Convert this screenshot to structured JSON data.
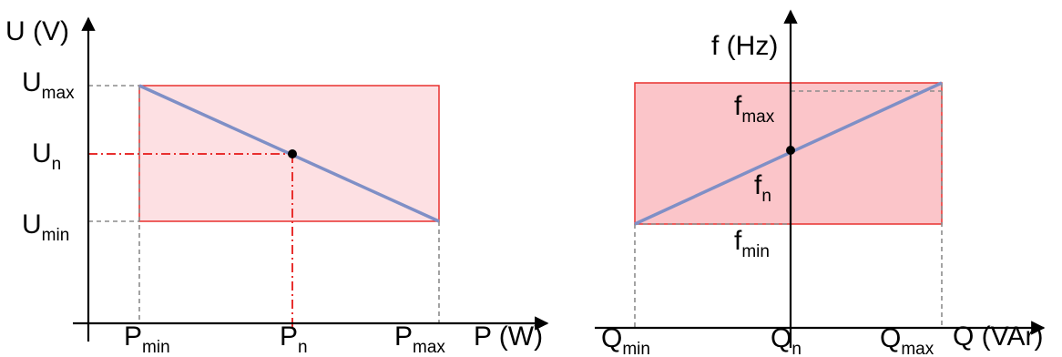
{
  "colors": {
    "rect_fill_left": "#fde0e3",
    "rect_fill_right": "#fbc5c9",
    "rect_stroke": "#e8302f",
    "droop_line": "#7f8fc6",
    "guide_grey": "#8c8c8c",
    "guide_red": "#e8302f",
    "axis": "#000000",
    "point": "#000000"
  },
  "left_diagram": {
    "y_axis_label": "U (V)",
    "x_axis_label": "P (W)",
    "labels": {
      "u_max": {
        "main": "U",
        "sub": "max"
      },
      "u_n": {
        "main": "U",
        "sub": "n"
      },
      "u_min": {
        "main": "U",
        "sub": "min"
      },
      "p_min": {
        "main": "P",
        "sub": "min"
      },
      "p_n": {
        "main": "P",
        "sub": "n"
      },
      "p_max": {
        "main": "P",
        "sub": "max"
      }
    }
  },
  "right_diagram": {
    "y_axis_label": "f (Hz)",
    "x_axis_label": "Q (VAr)",
    "labels": {
      "f_max": {
        "main": "f",
        "sub": "max"
      },
      "f_n": {
        "main": "f",
        "sub": "n"
      },
      "f_min": {
        "main": "f",
        "sub": "min"
      },
      "q_min": {
        "main": "Q",
        "sub": "min"
      },
      "q_n": {
        "main": "Q",
        "sub": "n"
      },
      "q_max": {
        "main": "Q",
        "sub": "max"
      }
    }
  }
}
